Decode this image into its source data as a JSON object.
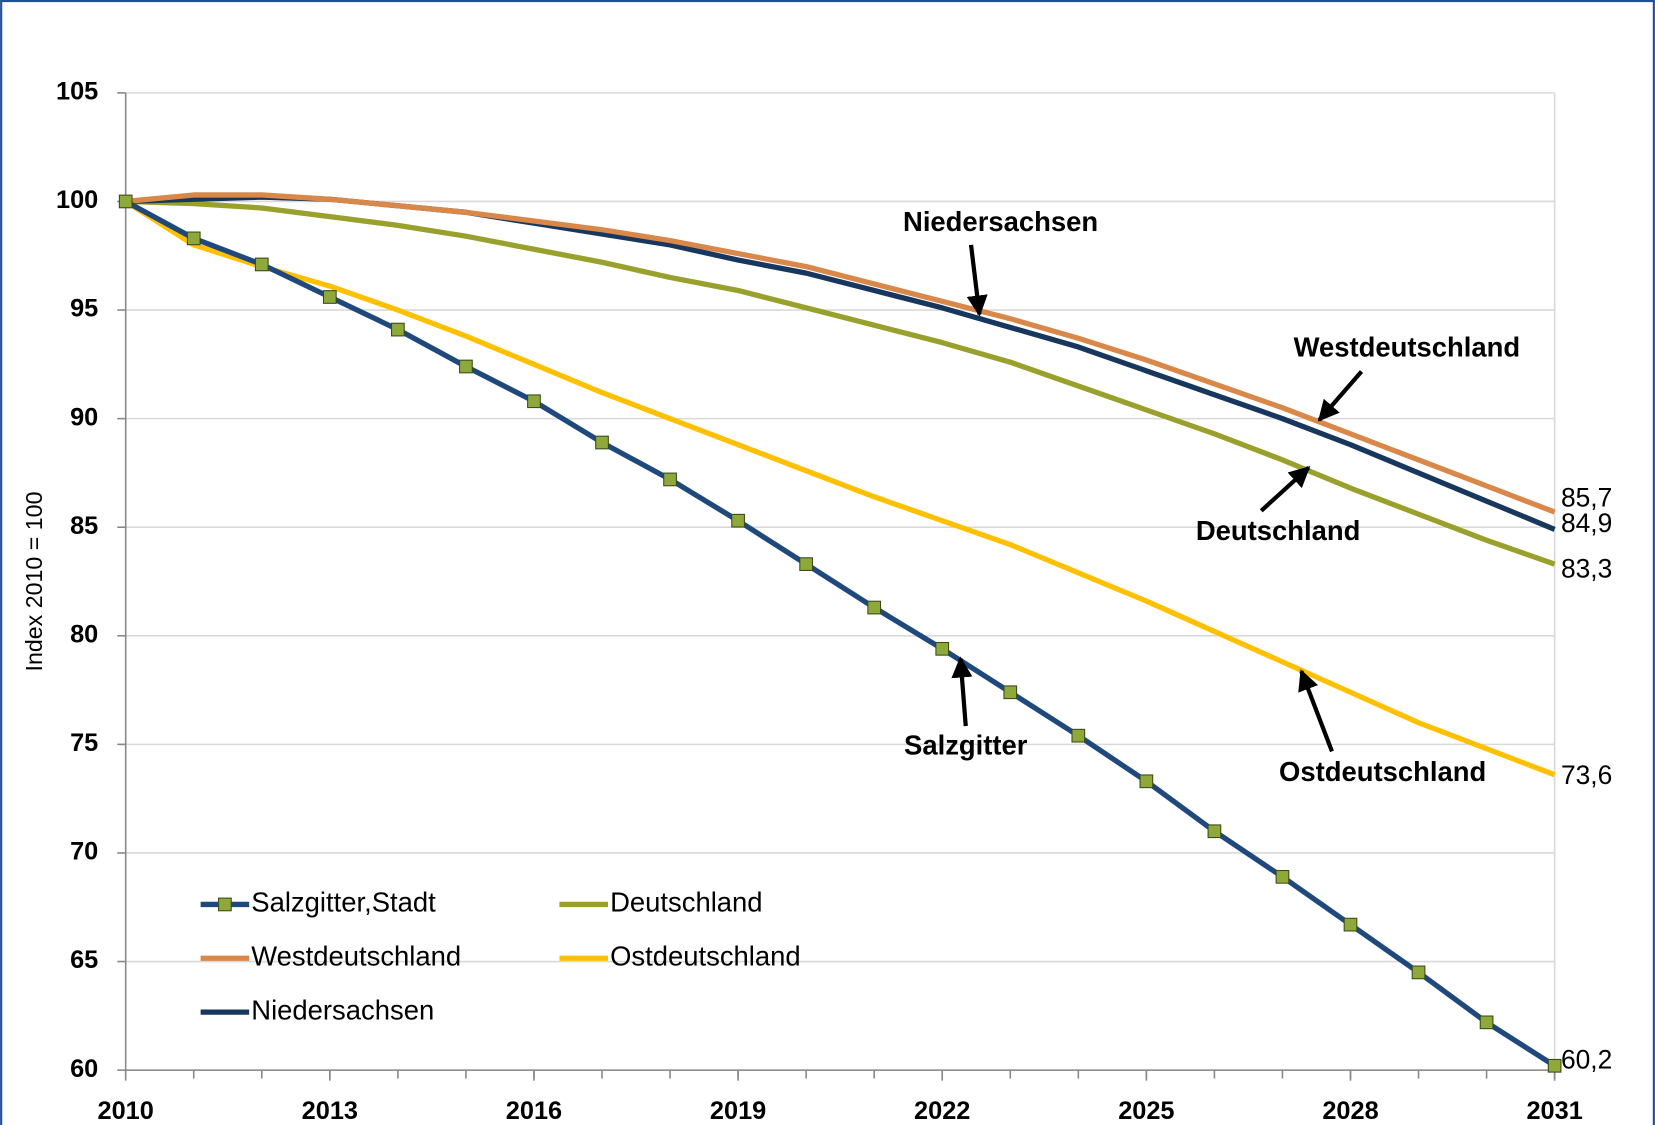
{
  "chart_data": {
    "type": "line",
    "y_label": "Index 2010 = 100",
    "x": [
      2010,
      2011,
      2012,
      2013,
      2014,
      2015,
      2016,
      2017,
      2018,
      2019,
      2020,
      2021,
      2022,
      2023,
      2024,
      2025,
      2026,
      2027,
      2028,
      2029,
      2030,
      2031
    ],
    "xlim": [
      2010,
      2031
    ],
    "xticks": [
      2010,
      2013,
      2016,
      2019,
      2022,
      2025,
      2028,
      2031
    ],
    "ylim": [
      60,
      105
    ],
    "yticks": [
      60,
      65,
      70,
      75,
      80,
      85,
      90,
      95,
      100,
      105
    ],
    "grid": true,
    "series": [
      {
        "name": "Salzgitter,Stadt",
        "color": "#1f497d",
        "marker_color": "#8fa83a",
        "values": [
          100,
          98.3,
          97.1,
          95.6,
          94.1,
          92.4,
          90.8,
          88.9,
          87.2,
          85.3,
          83.3,
          81.3,
          79.4,
          77.4,
          75.4,
          73.3,
          71.0,
          68.9,
          66.7,
          64.5,
          62.2,
          60.2
        ],
        "value_labels": [
          null,
          null,
          null,
          null,
          null,
          null,
          null,
          null,
          null,
          null,
          null,
          null,
          null,
          null,
          null,
          null,
          null,
          null,
          null,
          null,
          null,
          "60,2"
        ]
      },
      {
        "name": "Westdeutschland",
        "color": "#d9884a",
        "values": [
          100,
          100.3,
          100.3,
          100.1,
          99.8,
          99.5,
          99.1,
          98.7,
          98.2,
          97.6,
          97.0,
          96.2,
          95.4,
          94.6,
          93.7,
          92.7,
          91.6,
          90.5,
          89.3,
          88.1,
          86.9,
          85.7
        ],
        "value_labels": [
          null,
          null,
          null,
          null,
          null,
          null,
          null,
          null,
          null,
          null,
          null,
          null,
          null,
          null,
          null,
          null,
          null,
          null,
          null,
          null,
          null,
          "85,7"
        ]
      },
      {
        "name": "Niedersachsen",
        "color": "#17375e",
        "values": [
          100,
          100.1,
          100.2,
          100.1,
          99.8,
          99.5,
          99.0,
          98.5,
          98.0,
          97.3,
          96.7,
          95.9,
          95.1,
          94.2,
          93.3,
          92.2,
          91.1,
          90.0,
          88.8,
          87.5,
          86.2,
          84.9
        ],
        "value_labels": [
          null,
          null,
          null,
          null,
          null,
          null,
          null,
          null,
          null,
          null,
          null,
          null,
          null,
          null,
          null,
          null,
          null,
          null,
          null,
          null,
          null,
          "84,9"
        ]
      },
      {
        "name": "Deutschland",
        "color": "#9aa02c",
        "values": [
          100,
          99.9,
          99.7,
          99.3,
          98.9,
          98.4,
          97.8,
          97.2,
          96.5,
          95.9,
          95.1,
          94.3,
          93.5,
          92.6,
          91.5,
          90.4,
          89.3,
          88.1,
          86.8,
          85.6,
          84.4,
          83.3
        ],
        "value_labels": [
          null,
          null,
          null,
          null,
          null,
          null,
          null,
          null,
          null,
          null,
          null,
          null,
          null,
          null,
          null,
          null,
          null,
          null,
          null,
          null,
          null,
          "83,3"
        ]
      },
      {
        "name": "Ostdeutschland",
        "color": "#ffc000",
        "values": [
          100,
          98.0,
          97.0,
          96.1,
          95.0,
          93.8,
          92.5,
          91.2,
          90.0,
          88.8,
          87.6,
          86.4,
          85.3,
          84.2,
          82.9,
          81.6,
          80.2,
          78.8,
          77.4,
          76.0,
          74.8,
          73.6
        ],
        "value_labels": [
          null,
          null,
          null,
          null,
          null,
          null,
          null,
          null,
          null,
          null,
          null,
          null,
          null,
          null,
          null,
          null,
          null,
          null,
          null,
          null,
          null,
          "73,6"
        ]
      }
    ],
    "annotations": [
      "Niedersachsen",
      "Westdeutschland",
      "Deutschland",
      "Salzgitter",
      "Ostdeutschland"
    ]
  }
}
